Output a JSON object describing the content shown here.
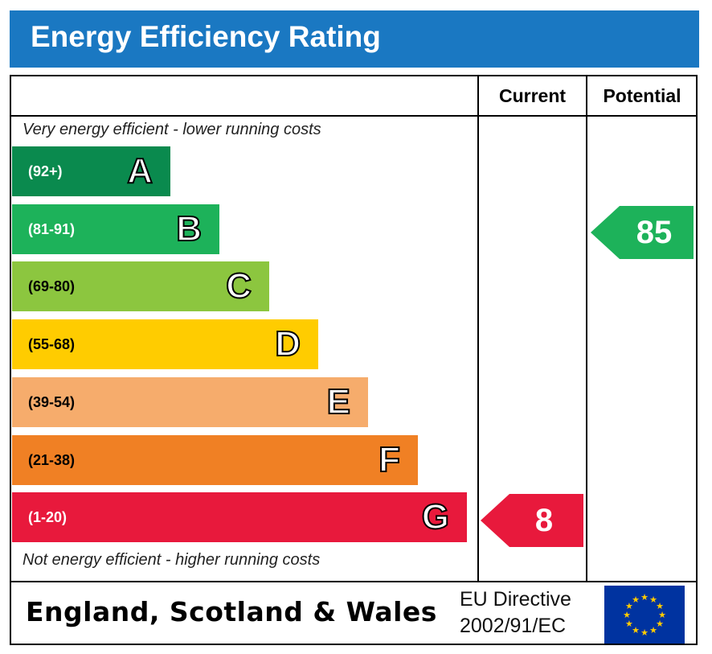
{
  "title": "Energy Efficiency Rating",
  "columns": {
    "current": "Current",
    "potential": "Potential"
  },
  "notes": {
    "top": "Very energy efficient - lower running costs",
    "bottom": "Not energy efficient - higher running costs"
  },
  "footer": {
    "region": "England, Scotland & Wales",
    "directive_line1": "EU Directive",
    "directive_line2": "2002/91/EC",
    "flag_icon": "eu-flag-icon"
  },
  "colors": {
    "title_bar": "#1a78c2",
    "A": "#0a8a4e",
    "B": "#1db25a",
    "C": "#8cc63f",
    "D": "#ffcc00",
    "E": "#f6ac6c",
    "F": "#f08024",
    "G": "#e8193c"
  },
  "chart_data": {
    "type": "bar",
    "bands": [
      {
        "letter": "A",
        "range": "(92+)",
        "min": 92,
        "max": 100
      },
      {
        "letter": "B",
        "range": "(81-91)",
        "min": 81,
        "max": 91
      },
      {
        "letter": "C",
        "range": "(69-80)",
        "min": 69,
        "max": 80
      },
      {
        "letter": "D",
        "range": "(55-68)",
        "min": 55,
        "max": 68
      },
      {
        "letter": "E",
        "range": "(39-54)",
        "min": 39,
        "max": 54
      },
      {
        "letter": "F",
        "range": "(21-38)",
        "min": 21,
        "max": 38
      },
      {
        "letter": "G",
        "range": "(1-20)",
        "min": 1,
        "max": 20
      }
    ],
    "current": {
      "value": 8,
      "band": "G"
    },
    "potential": {
      "value": 85,
      "band": "B"
    }
  }
}
